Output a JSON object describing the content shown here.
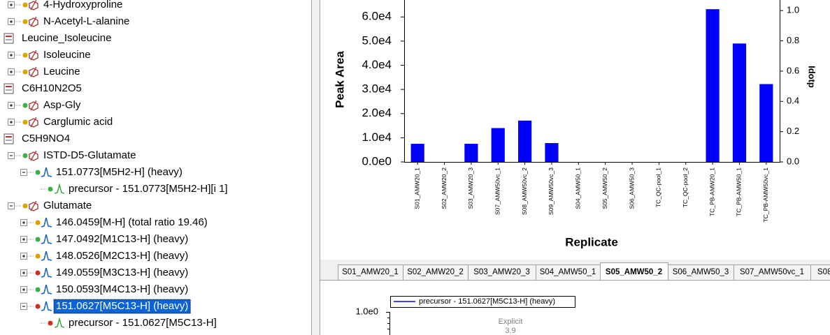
{
  "tree": {
    "nodes": [
      "4-Hydroxyproline",
      "N-Acetyl-L-alanine",
      "Leucine_Isoleucine",
      "Isoleucine",
      "Leucine",
      "C6H10N2O5",
      "Asp-Gly",
      "Carglumic acid",
      "C5H9NO4",
      "ISTD-D5-Glutamate",
      "151.0773[M5H2-H] (heavy)",
      "precursor - 151.0773[M5H2-H][i 1]",
      "Glutamate",
      "146.0459[M-H] (total ratio 19.46)",
      "147.0492[M1C13-H] (heavy)",
      "148.0526[M2C13-H] (heavy)",
      "149.0559[M3C13-H] (heavy)",
      "150.0593[M4C13-H] (heavy)",
      "151.0627[M5C13-H] (heavy)",
      "precursor - 151.0627[M5C13-H]"
    ]
  },
  "chart_data": {
    "type": "bar",
    "x_label": "Replicate",
    "y_label": "Peak Area",
    "y2_label": "Idotp",
    "categories": [
      "S01_AMW20_1",
      "S02_AMW20_2",
      "S03_AMW20_3",
      "S07_AMW50vc_1",
      "S08_AMW50vc_2",
      "S09_AMW50vc_3",
      "S04_AMW50_1",
      "S05_AMW50_2",
      "S06_AMW50_3",
      "TC_QC-pool_1",
      "TC_QC-pool_2",
      "TC_PB-AMW20_1",
      "TC_PB-AMW50_1",
      "TC_PB-AMW50vc_1"
    ],
    "values": [
      7500,
      0,
      7500,
      14000,
      17100,
      7800,
      0,
      0,
      0,
      0,
      0,
      63200,
      49000,
      32200
    ],
    "color": "#0000ff",
    "ylim": [
      0,
      67000
    ],
    "yticks": [
      {
        "value": 0,
        "label": "0.0e0"
      },
      {
        "value": 10000,
        "label": "1.0e4"
      },
      {
        "value": 20000,
        "label": "2.0e4"
      },
      {
        "value": 30000,
        "label": "3.0e4"
      },
      {
        "value": 40000,
        "label": "4.0e4"
      },
      {
        "value": 50000,
        "label": "5.0e4"
      },
      {
        "value": 60000,
        "label": "6.0e4"
      }
    ],
    "y2lim": [
      0,
      1.07
    ],
    "y2ticks": [
      {
        "value": 0,
        "label": "0.0"
      },
      {
        "value": 0.2,
        "label": "0.2"
      },
      {
        "value": 0.4,
        "label": "0.4"
      },
      {
        "value": 0.6,
        "label": "0.6"
      },
      {
        "value": 0.8,
        "label": "0.8"
      },
      {
        "value": 1,
        "label": "1.0"
      }
    ],
    "grid": false
  },
  "tabs": {
    "items": [
      "S01_AMW20_1",
      "S02_AMW20_2",
      "S03_AMW20_3",
      "S04_AMW50_1",
      "S05_AMW50_2",
      "S06_AMW50_3",
      "S07_AMW50vc_1",
      "S08"
    ],
    "selected": 4
  },
  "chromatogram": {
    "legend": "precursor - 151.0627[M5C13-H] (heavy)",
    "ytick": "1.0e0",
    "annotation": "Explicit",
    "annotation_value": "3.9"
  }
}
